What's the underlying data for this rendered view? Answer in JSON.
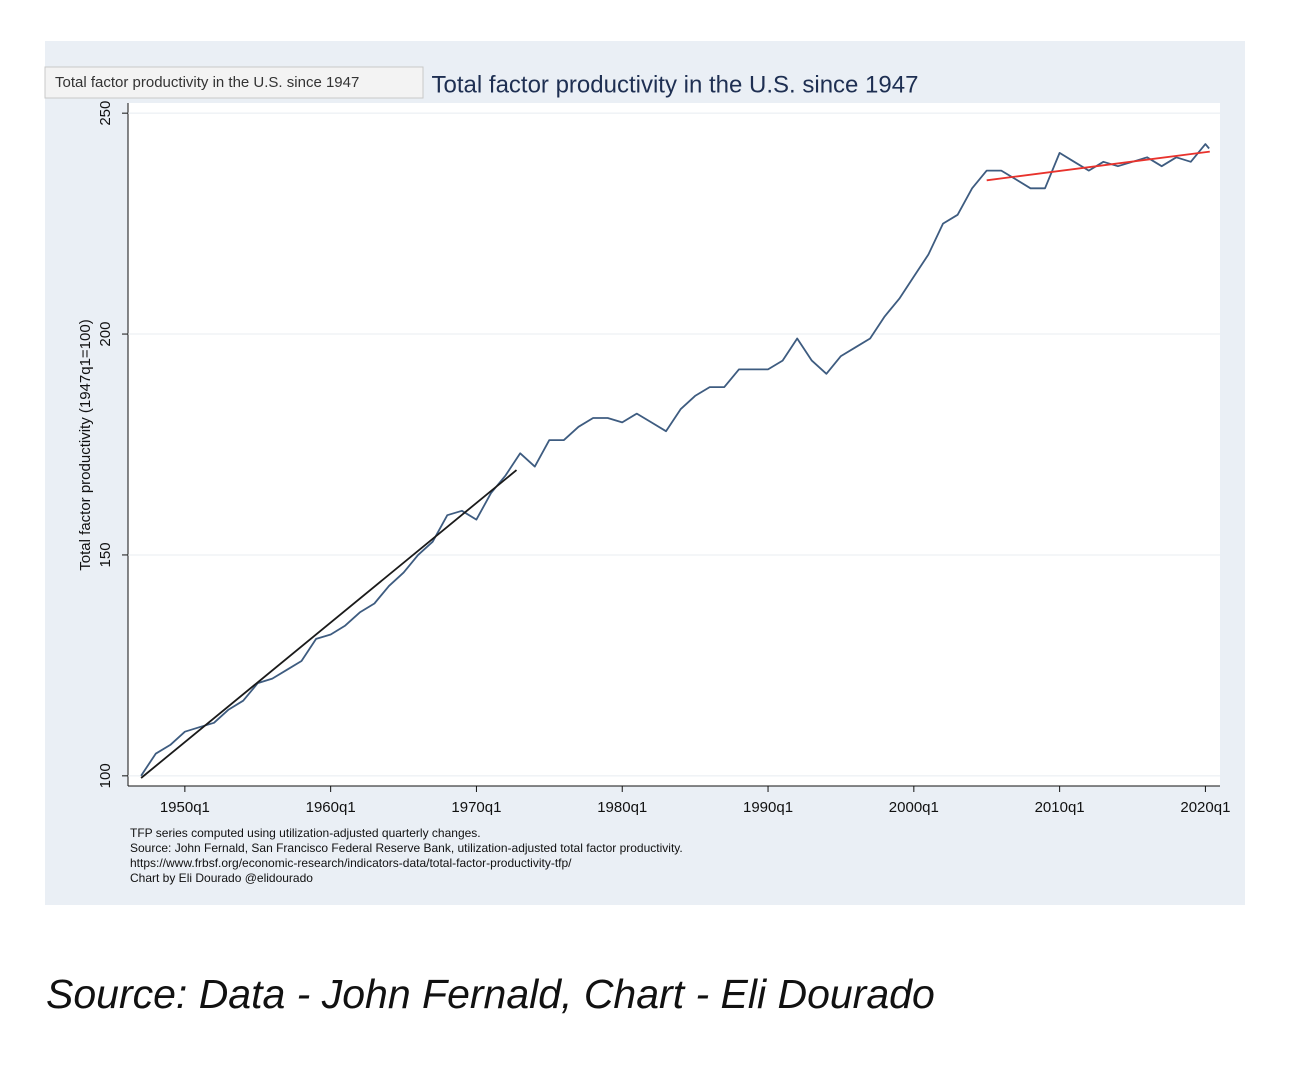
{
  "chart_data": {
    "type": "line",
    "title": "Total factor productivity in the U.S. since 1947",
    "tooltip": "Total factor productivity in the U.S. since 1947",
    "ylabel": "Total factor productivity (1947q1=100)",
    "notes": [
      "TFP series computed using utilization-adjusted quarterly changes.",
      "Source: John Fernald, San Francisco Federal Reserve Bank, utilization-adjusted total factor productivity.",
      "https://www.frbsf.org/economic-research/indicators-data/total-factor-productivity-tfp/",
      "Chart by Eli Dourado @elidourado"
    ],
    "caption": "Source: Data - John Fernald, Chart - Eli Dourado",
    "xlim": [
      1946.1,
      2021
    ],
    "xticks": [
      {
        "value": 1950,
        "label": "1950q1"
      },
      {
        "value": 1960,
        "label": "1960q1"
      },
      {
        "value": 1970,
        "label": "1970q1"
      },
      {
        "value": 1980,
        "label": "1980q1"
      },
      {
        "value": 1990,
        "label": "1990q1"
      },
      {
        "value": 2000,
        "label": "2000q1"
      },
      {
        "value": 2010,
        "label": "2010q1"
      },
      {
        "value": 2020,
        "label": "2020q1"
      }
    ],
    "ylim": [
      97.7,
      252.3
    ],
    "yticks": [
      100,
      150,
      200,
      250
    ],
    "grid": true,
    "series": [
      {
        "color": "#3e5c80",
        "x": [
          1947,
          1948,
          1949,
          1950,
          1951,
          1952,
          1953,
          1954,
          1955,
          1956,
          1957,
          1958,
          1959,
          1960,
          1961,
          1962,
          1963,
          1964,
          1965,
          1966,
          1967,
          1968,
          1969,
          1970,
          1971,
          1972,
          1973,
          1974,
          1975,
          1976,
          1977,
          1978,
          1979,
          1980,
          1981,
          1982,
          1983,
          1984,
          1985,
          1986,
          1987,
          1988,
          1989,
          1990,
          1991,
          1992,
          1993,
          1994,
          1995,
          1996,
          1997,
          1998,
          1999,
          2000,
          2001,
          2002,
          2003,
          2004,
          2005,
          2006,
          2007,
          2008,
          2009,
          2010,
          2011,
          2012,
          2013,
          2014,
          2015,
          2016,
          2017,
          2018,
          2019,
          2020,
          2020.25
        ],
        "values": [
          100,
          105,
          107,
          110,
          111,
          112,
          115,
          117,
          121,
          122,
          124,
          126,
          131,
          132,
          134,
          137,
          139,
          143,
          146,
          150,
          153,
          159,
          160,
          158,
          164,
          168,
          173,
          170,
          176,
          176,
          179,
          181,
          181,
          180,
          182,
          180,
          178,
          183,
          186,
          188,
          188,
          192,
          192,
          192,
          194,
          199,
          194,
          191,
          195,
          197,
          199,
          204,
          208,
          213,
          218,
          225,
          227,
          233,
          237,
          237,
          235,
          233,
          233,
          241,
          239,
          237,
          239,
          238,
          239,
          240,
          238,
          240,
          239,
          243,
          242
        ]
      },
      {
        "color": "#1a1a1a",
        "x": [
          1947,
          1972.75
        ],
        "values": [
          99.5,
          169.2
        ]
      },
      {
        "color": "#e8322c",
        "x": [
          2005,
          2020.3
        ],
        "values": [
          234.8,
          241.3
        ]
      }
    ]
  }
}
